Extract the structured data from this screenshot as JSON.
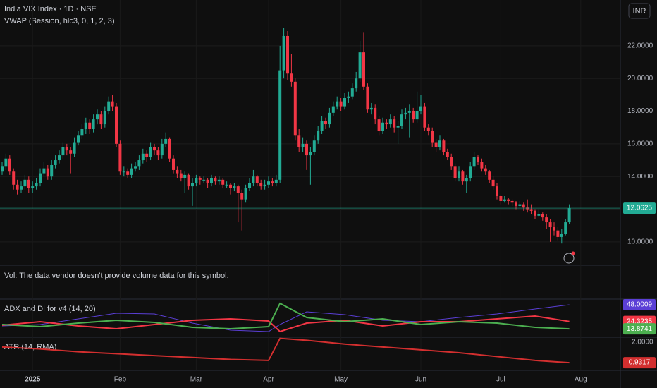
{
  "chart_data": [
    {
      "type": "candlestick",
      "title": "India VIX Index · 1D · NSE",
      "subtitle": "VWAP (Session, hlc3, 0, 1, 2, 3)",
      "currency": "INR",
      "note": "Vol: The data vendor doesn't provide volume data for this symbol.",
      "up_color": "#22ab94",
      "down_color": "#f23645",
      "ylim": [
        8.57,
        24.8
      ],
      "yticks": [
        {
          "value": 10,
          "label": "10.0000"
        },
        {
          "value": 12,
          "label": "12.0000"
        },
        {
          "value": 14,
          "label": "14.0000"
        },
        {
          "value": 16,
          "label": "16.0000"
        },
        {
          "value": 18,
          "label": "18.0000"
        },
        {
          "value": 20,
          "label": "20.0000"
        },
        {
          "value": 22,
          "label": "22.0000"
        }
      ],
      "xticks": [
        {
          "value": 8,
          "label": "2025"
        },
        {
          "value": 31,
          "label": "Feb"
        },
        {
          "value": 51,
          "label": "Mar"
        },
        {
          "value": 70,
          "label": "Apr"
        },
        {
          "value": 89,
          "label": "May"
        },
        {
          "value": 110,
          "label": "Jun"
        },
        {
          "value": 131,
          "label": "Jul"
        },
        {
          "value": 152,
          "label": "Aug"
        }
      ],
      "candles": [
        [
          14.3,
          14.9,
          14.1,
          14.6
        ],
        [
          14.6,
          15.4,
          14.4,
          15.1
        ],
        [
          15.1,
          15.3,
          14.1,
          14.3
        ],
        [
          14.3,
          14.5,
          13.2,
          13.5
        ],
        [
          13.5,
          13.8,
          12.9,
          13.2
        ],
        [
          13.2,
          13.7,
          13.0,
          13.4
        ],
        [
          13.4,
          14.1,
          13.2,
          13.8
        ],
        [
          13.8,
          14.0,
          13.0,
          13.3
        ],
        [
          13.3,
          13.7,
          13.0,
          13.4
        ],
        [
          13.4,
          13.9,
          13.2,
          13.6
        ],
        [
          13.6,
          14.5,
          13.4,
          14.2
        ],
        [
          14.2,
          14.9,
          14.0,
          14.5
        ],
        [
          14.5,
          14.7,
          13.8,
          14.0
        ],
        [
          14.0,
          15.0,
          13.8,
          14.7
        ],
        [
          14.7,
          15.3,
          14.5,
          15.0
        ],
        [
          15.0,
          15.6,
          14.8,
          15.3
        ],
        [
          15.3,
          16.1,
          15.1,
          15.8
        ],
        [
          15.8,
          16.0,
          15.3,
          15.6
        ],
        [
          15.6,
          15.8,
          14.2,
          15.4
        ],
        [
          15.4,
          16.4,
          15.2,
          16.1
        ],
        [
          16.1,
          16.8,
          15.9,
          16.5
        ],
        [
          16.5,
          17.2,
          16.3,
          16.9
        ],
        [
          16.9,
          17.6,
          16.6,
          17.3
        ],
        [
          17.3,
          17.5,
          16.6,
          16.9
        ],
        [
          16.9,
          17.8,
          16.7,
          17.5
        ],
        [
          17.5,
          18.1,
          17.2,
          17.8
        ],
        [
          17.8,
          18.0,
          16.9,
          17.2
        ],
        [
          17.2,
          18.3,
          17.0,
          18.0
        ],
        [
          18.0,
          18.9,
          17.8,
          18.6
        ],
        [
          18.6,
          19.0,
          18.0,
          18.3
        ],
        [
          18.3,
          18.5,
          15.8,
          16.0
        ],
        [
          16.0,
          16.2,
          14.1,
          14.3
        ],
        [
          14.3,
          14.6,
          14.0,
          14.3
        ],
        [
          14.3,
          14.5,
          13.9,
          14.1
        ],
        [
          14.1,
          14.8,
          13.9,
          14.5
        ],
        [
          14.5,
          14.9,
          14.3,
          14.6
        ],
        [
          14.6,
          15.3,
          14.4,
          15.0
        ],
        [
          15.0,
          15.7,
          14.8,
          15.4
        ],
        [
          15.4,
          15.6,
          14.9,
          15.2
        ],
        [
          15.2,
          16.1,
          15.0,
          15.8
        ],
        [
          15.8,
          16.0,
          15.3,
          15.6
        ],
        [
          15.6,
          15.8,
          15.0,
          15.3
        ],
        [
          15.3,
          16.3,
          15.1,
          16.0
        ],
        [
          16.0,
          16.7,
          15.8,
          16.3
        ],
        [
          16.3,
          16.4,
          14.9,
          15.1
        ],
        [
          15.1,
          15.3,
          14.2,
          14.4
        ],
        [
          14.4,
          14.6,
          13.9,
          14.2
        ],
        [
          14.2,
          14.4,
          13.7,
          13.9
        ],
        [
          13.9,
          14.3,
          13.0,
          14.1
        ],
        [
          14.1,
          14.2,
          13.2,
          13.4
        ],
        [
          13.4,
          13.9,
          12.2,
          13.6
        ],
        [
          13.6,
          14.1,
          13.4,
          13.9
        ],
        [
          13.9,
          14.0,
          13.5,
          13.8
        ],
        [
          13.8,
          14.0,
          13.6,
          13.8
        ],
        [
          13.8,
          13.9,
          13.3,
          13.6
        ],
        [
          13.6,
          14.1,
          13.4,
          13.9
        ],
        [
          13.9,
          14.0,
          13.5,
          13.7
        ],
        [
          13.7,
          14.0,
          13.5,
          13.8
        ],
        [
          13.8,
          13.9,
          13.3,
          13.5
        ],
        [
          13.5,
          13.7,
          13.3,
          13.5
        ],
        [
          13.5,
          13.6,
          12.9,
          13.3
        ],
        [
          13.3,
          13.6,
          13.1,
          13.4
        ],
        [
          13.4,
          13.5,
          11.2,
          13.0
        ],
        [
          13.0,
          13.2,
          10.7,
          12.6
        ],
        [
          12.6,
          13.5,
          12.4,
          13.3
        ],
        [
          13.3,
          13.9,
          13.1,
          13.6
        ],
        [
          13.6,
          14.4,
          13.4,
          14.0
        ],
        [
          14.0,
          14.1,
          13.4,
          13.6
        ],
        [
          13.6,
          13.8,
          13.2,
          13.4
        ],
        [
          13.4,
          13.8,
          13.2,
          13.5
        ],
        [
          13.5,
          14.0,
          13.3,
          13.7
        ],
        [
          13.7,
          13.9,
          13.4,
          13.6
        ],
        [
          13.6,
          14.1,
          13.4,
          13.8
        ],
        [
          13.8,
          22.0,
          13.6,
          20.5
        ],
        [
          20.5,
          23.1,
          20.0,
          22.6
        ],
        [
          22.6,
          22.9,
          19.9,
          20.3
        ],
        [
          20.3,
          21.5,
          19.5,
          19.8
        ],
        [
          19.8,
          20.0,
          16.2,
          16.5
        ],
        [
          16.5,
          16.9,
          15.5,
          15.8
        ],
        [
          15.8,
          16.4,
          15.5,
          16.0
        ],
        [
          16.0,
          16.2,
          14.4,
          15.3
        ],
        [
          15.3,
          15.8,
          13.5,
          15.5
        ],
        [
          15.5,
          16.5,
          15.3,
          16.2
        ],
        [
          16.2,
          17.1,
          16.0,
          16.8
        ],
        [
          16.8,
          17.7,
          16.6,
          17.4
        ],
        [
          17.4,
          17.6,
          16.9,
          17.2
        ],
        [
          17.2,
          18.2,
          17.0,
          17.9
        ],
        [
          17.9,
          18.6,
          17.7,
          18.3
        ],
        [
          18.3,
          18.9,
          18.1,
          18.6
        ],
        [
          18.6,
          18.8,
          18.0,
          18.3
        ],
        [
          18.3,
          19.1,
          18.1,
          18.8
        ],
        [
          18.8,
          19.2,
          18.5,
          18.9
        ],
        [
          18.9,
          19.7,
          18.7,
          19.4
        ],
        [
          19.4,
          20.4,
          19.2,
          20.0
        ],
        [
          20.0,
          22.3,
          19.8,
          21.6
        ],
        [
          21.6,
          22.8,
          19.3,
          19.5
        ],
        [
          19.5,
          19.7,
          17.9,
          18.1
        ],
        [
          18.1,
          18.5,
          17.8,
          18.2
        ],
        [
          18.2,
          18.4,
          17.2,
          17.5
        ],
        [
          17.5,
          17.7,
          16.5,
          16.8
        ],
        [
          16.8,
          17.6,
          16.6,
          17.3
        ],
        [
          17.3,
          17.5,
          16.9,
          17.2
        ],
        [
          17.2,
          17.8,
          17.0,
          17.5
        ],
        [
          17.5,
          17.7,
          16.7,
          17.0
        ],
        [
          17.0,
          17.4,
          16.0,
          17.1
        ],
        [
          17.1,
          18.1,
          16.9,
          17.8
        ],
        [
          17.8,
          18.2,
          17.5,
          17.9
        ],
        [
          17.9,
          18.4,
          16.4,
          18.0
        ],
        [
          18.0,
          18.2,
          17.3,
          17.5
        ],
        [
          17.5,
          19.2,
          17.3,
          18.0
        ],
        [
          18.0,
          19.0,
          17.8,
          18.3
        ],
        [
          18.3,
          18.5,
          16.8,
          17.0
        ],
        [
          17.0,
          17.2,
          16.5,
          16.8
        ],
        [
          16.8,
          17.0,
          15.8,
          16.1
        ],
        [
          16.1,
          16.3,
          15.5,
          15.8
        ],
        [
          15.8,
          16.5,
          15.6,
          16.2
        ],
        [
          16.2,
          16.3,
          15.3,
          15.5
        ],
        [
          15.5,
          15.7,
          15.0,
          15.2
        ],
        [
          15.2,
          15.4,
          14.4,
          14.6
        ],
        [
          14.6,
          14.8,
          13.7,
          13.9
        ],
        [
          13.9,
          14.6,
          13.7,
          14.3
        ],
        [
          14.3,
          14.4,
          13.5,
          13.7
        ],
        [
          13.7,
          14.1,
          13.0,
          13.9
        ],
        [
          13.9,
          14.9,
          13.7,
          14.6
        ],
        [
          14.6,
          15.5,
          14.4,
          15.2
        ],
        [
          15.2,
          15.3,
          14.7,
          14.9
        ],
        [
          14.9,
          15.1,
          14.3,
          14.5
        ],
        [
          14.5,
          14.7,
          14.1,
          14.3
        ],
        [
          14.3,
          14.4,
          13.6,
          13.8
        ],
        [
          13.8,
          14.0,
          13.2,
          13.4
        ],
        [
          13.4,
          13.6,
          12.6,
          12.8
        ],
        [
          12.8,
          12.9,
          12.3,
          12.5
        ],
        [
          12.5,
          12.8,
          12.4,
          12.6
        ],
        [
          12.6,
          12.7,
          12.3,
          12.5
        ],
        [
          12.5,
          12.6,
          12.2,
          12.4
        ],
        [
          12.4,
          12.5,
          12.0,
          12.2
        ],
        [
          12.2,
          12.5,
          12.1,
          12.3
        ],
        [
          12.3,
          12.4,
          11.9,
          12.1
        ],
        [
          12.1,
          12.6,
          11.8,
          12.0
        ],
        [
          12.0,
          12.3,
          11.7,
          11.9
        ],
        [
          11.9,
          12.0,
          11.4,
          11.6
        ],
        [
          11.6,
          12.0,
          11.5,
          11.7
        ],
        [
          11.7,
          11.8,
          11.3,
          11.5
        ],
        [
          11.5,
          11.7,
          10.8,
          11.2
        ],
        [
          11.2,
          11.4,
          10.0,
          10.9
        ],
        [
          10.9,
          11.2,
          10.4,
          10.7
        ],
        [
          10.7,
          10.9,
          10.1,
          10.3
        ],
        [
          10.3,
          10.8,
          9.9,
          10.5
        ],
        [
          10.5,
          11.4,
          10.4,
          11.2
        ],
        [
          11.2,
          12.3,
          11.1,
          12.0625
        ]
      ]
    },
    {
      "type": "line",
      "title": "ADX and DI for v4 (14, 20)",
      "ylim": [
        2,
        55
      ],
      "x": [
        0,
        10,
        20,
        30,
        40,
        50,
        60,
        70,
        73,
        80,
        90,
        100,
        110,
        120,
        130,
        140,
        149
      ],
      "series": [
        {
          "color": "#5b3fd6",
          "values": [
            18,
            20,
            28,
            36,
            35,
            22,
            12,
            10,
            20,
            38,
            34,
            26,
            24,
            30,
            35,
            42,
            48.0009
          ]
        },
        {
          "color": "#f23645",
          "values": [
            19,
            24,
            18,
            14,
            20,
            26,
            28,
            25,
            10,
            22,
            26,
            18,
            24,
            24,
            28,
            32,
            24.3235
          ]
        },
        {
          "color": "#4caf50",
          "values": [
            20,
            17,
            22,
            26,
            23,
            16,
            14,
            17,
            50,
            30,
            24,
            28,
            20,
            24,
            22,
            16,
            13.8741
          ]
        }
      ]
    },
    {
      "type": "line",
      "title": "ATR (14, RMA)",
      "ylim": [
        0.53,
        2.26
      ],
      "yticks": [
        {
          "value": 2,
          "label": "2.0000"
        }
      ],
      "x": [
        0,
        10,
        20,
        30,
        40,
        50,
        60,
        70,
        73,
        80,
        90,
        100,
        110,
        120,
        130,
        140,
        149
      ],
      "series": [
        {
          "color": "#d32f2f",
          "values": [
            1.75,
            1.65,
            1.5,
            1.4,
            1.3,
            1.2,
            1.1,
            1.05,
            2.2,
            2.1,
            1.9,
            1.75,
            1.6,
            1.45,
            1.25,
            1.05,
            0.9317
          ]
        }
      ]
    }
  ]
}
